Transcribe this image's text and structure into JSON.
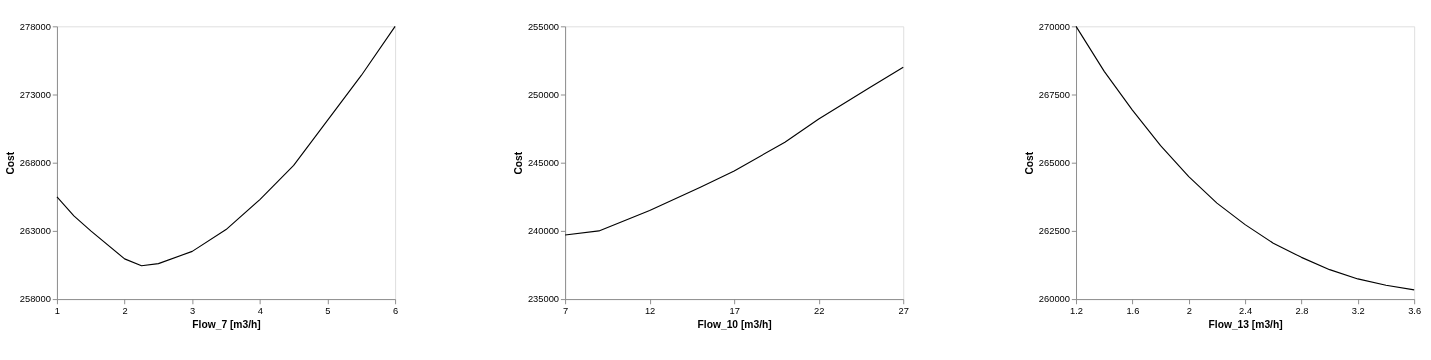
{
  "chart_data": [
    {
      "type": "line",
      "xlabel": "Flow_7 [m3/h]",
      "ylabel": "Cost",
      "xlim": [
        1,
        6
      ],
      "xticks": [
        1,
        2,
        3,
        4,
        5,
        6
      ],
      "ylim": [
        258000,
        278000
      ],
      "yticks": [
        258000,
        263000,
        268000,
        273000,
        278000
      ],
      "grid": false,
      "line_style": "solid",
      "x": [
        1,
        1.25,
        1.5,
        2,
        2.25,
        2.5,
        3,
        3.5,
        4,
        4.5,
        5,
        5.5,
        6
      ],
      "series": [
        {
          "color": "#000000",
          "values": [
            265500,
            264100,
            263000,
            260950,
            260450,
            260600,
            261500,
            263100,
            265300,
            267800,
            271100,
            274400,
            278000
          ]
        }
      ]
    },
    {
      "type": "line",
      "xlabel": "Flow_10 [m3/h]",
      "ylabel": "Cost",
      "xlim": [
        7,
        27
      ],
      "xticks": [
        7,
        12,
        17,
        22,
        27
      ],
      "ylim": [
        235000,
        255000
      ],
      "yticks": [
        235000,
        240000,
        245000,
        250000,
        255000
      ],
      "grid": false,
      "line_style": "solid",
      "x": [
        7,
        9,
        12,
        15,
        17,
        20,
        22,
        25,
        27
      ],
      "series": [
        {
          "color": "#000000",
          "values": [
            239700,
            240000,
            241500,
            243200,
            244400,
            246500,
            248200,
            250500,
            252000
          ]
        }
      ]
    },
    {
      "type": "line",
      "xlabel": "Flow_13 [m3/h]",
      "ylabel": "Cost",
      "xlim": [
        1.2,
        3.6
      ],
      "xticks": [
        1.2,
        1.6,
        2,
        2.4,
        2.8,
        3.2,
        3.6
      ],
      "ylim": [
        260000,
        270000
      ],
      "yticks": [
        260000,
        262500,
        265000,
        267500,
        270000
      ],
      "grid": false,
      "line_style": "solid",
      "x": [
        1.2,
        1.4,
        1.6,
        1.8,
        2.0,
        2.2,
        2.4,
        2.6,
        2.8,
        3.0,
        3.2,
        3.4,
        3.6
      ],
      "series": [
        {
          "color": "#000000",
          "values": [
            270000,
            268350,
            266930,
            265630,
            264490,
            263520,
            262730,
            262050,
            261530,
            261080,
            260740,
            260510,
            260340
          ]
        }
      ]
    }
  ]
}
